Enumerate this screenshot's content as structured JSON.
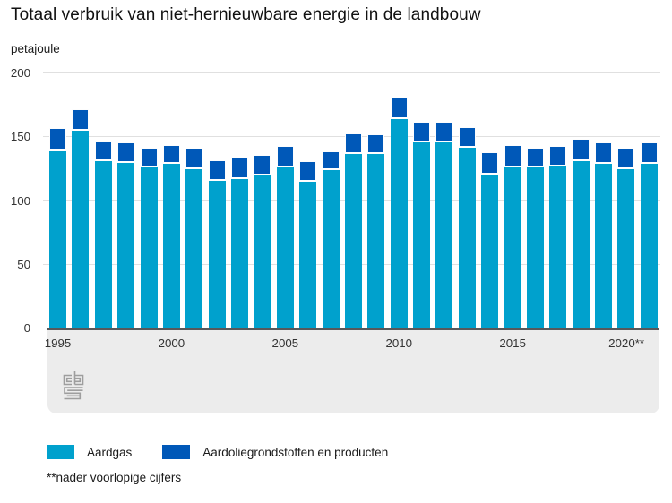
{
  "title": "Totaal verbruik van niet-hernieuwbare energie in de landbouw",
  "unit_label": "petajoule",
  "footnote": "**nader voorlopige cijfers",
  "colors": {
    "aardgas": "#00a1cd",
    "aardolie": "#0058b8",
    "axis": "#58585a",
    "gridline": "#e0e0e0",
    "footer_strip": "#ececec",
    "logo_gray": "#9e9e9e",
    "text": "#1a1a1a"
  },
  "chart_data": {
    "type": "bar",
    "stacked": true,
    "title": "Totaal verbruik van niet-hernieuwbare energie in de landbouw",
    "ylabel": "petajoule",
    "xlabel": "",
    "ylim": [
      0,
      200
    ],
    "yticks": [
      0,
      50,
      100,
      150,
      200
    ],
    "xticks": [
      "1995",
      "2000",
      "2005",
      "2010",
      "2015",
      "2020**"
    ],
    "grid": true,
    "legend_position": "bottom",
    "categories": [
      1995,
      1996,
      1997,
      1998,
      1999,
      2000,
      2001,
      2002,
      2003,
      2004,
      2005,
      2006,
      2007,
      2008,
      2009,
      2010,
      2011,
      2012,
      2013,
      2014,
      2015,
      2016,
      2017,
      2018,
      2019,
      2020,
      2021
    ],
    "series": [
      {
        "name": "Aardgas",
        "color": "#00a1cd",
        "values": [
          139,
          155,
          131,
          130,
          126,
          129,
          125,
          116,
          117,
          120,
          126,
          115,
          124,
          137,
          137,
          164,
          146,
          146,
          142,
          121,
          126,
          126,
          127,
          131,
          129,
          125,
          129
        ]
      },
      {
        "name": "Aardoliegrondstoffen en producten",
        "color": "#0058b8",
        "values": [
          18,
          17,
          16,
          16,
          16,
          15,
          16,
          16,
          17,
          16,
          17,
          16,
          15,
          16,
          15,
          17,
          16,
          16,
          16,
          17,
          18,
          16,
          16,
          18,
          17,
          16,
          17
        ]
      }
    ]
  }
}
